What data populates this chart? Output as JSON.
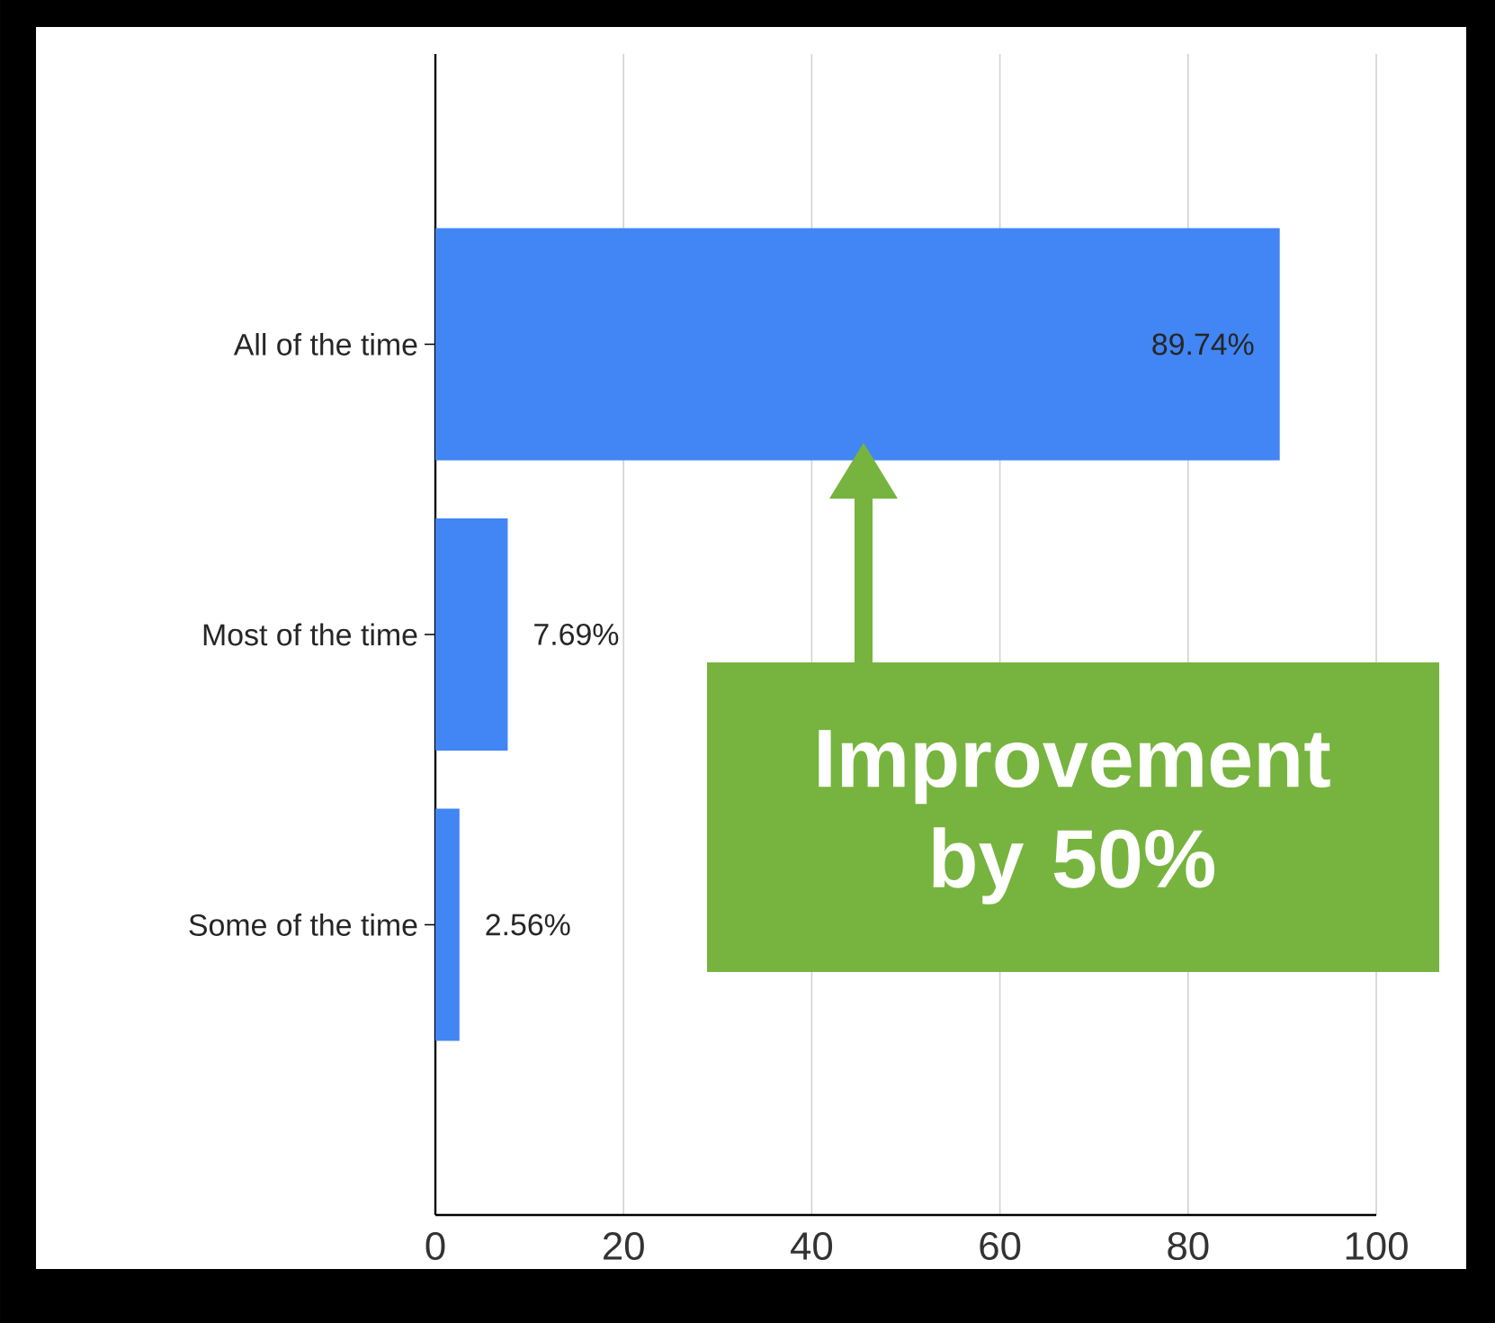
{
  "chart_data": {
    "type": "bar",
    "orientation": "horizontal",
    "categories": [
      "All of the time",
      "Most of the time",
      "Some of the time"
    ],
    "values": [
      89.74,
      7.69,
      2.56
    ],
    "value_labels": [
      "89.74%",
      "7.69%",
      "2.56%"
    ],
    "color": "#4285f4",
    "xlim": [
      0,
      100
    ],
    "xticks": [
      0,
      20,
      40,
      60,
      80,
      100
    ],
    "grid": "x",
    "annotations": [
      "Improvement by 50%"
    ]
  }
}
